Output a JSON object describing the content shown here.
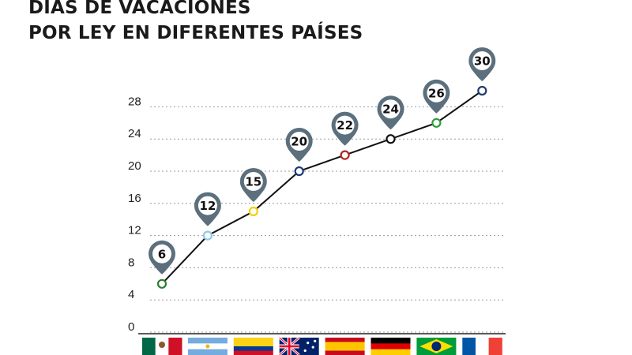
{
  "title": {
    "line1": "DIAS DE VACACIONES",
    "line2": "POR LEY EN DIFERENTES PAÍSES"
  },
  "chart_data": {
    "type": "line",
    "title": "DIAS DE VACACIONES POR LEY EN DIFERENTES PAÍSES",
    "xlabel": "",
    "ylabel": "",
    "yticks": [
      0,
      4,
      8,
      12,
      16,
      20,
      24,
      28
    ],
    "ylim": [
      0,
      30
    ],
    "grid": true,
    "categories": [
      "México",
      "Argentina",
      "Colombia",
      "Australia",
      "España",
      "Alemania",
      "Brasil",
      "Francia"
    ],
    "values": [
      6,
      12,
      15,
      20,
      22,
      24,
      26,
      30
    ],
    "data_labels": [
      "6",
      "12",
      "15",
      "20",
      "22",
      "24",
      "26",
      "30"
    ],
    "marker_colors": [
      "#2e7d32",
      "#8ecae6",
      "#f2d00a",
      "#1f3b73",
      "#b3261e",
      "#111111",
      "#2e9a3a",
      "#1f3b73"
    ],
    "line_color": "#111111",
    "pin_color": "#5b6f7d",
    "flags": [
      {
        "name": "mexico-flag",
        "stripes": "v",
        "colors": [
          "#006847",
          "#ffffff",
          "#ce1126"
        ]
      },
      {
        "name": "argentina-flag",
        "stripes": "h",
        "colors": [
          "#74acdf",
          "#ffffff",
          "#74acdf"
        ]
      },
      {
        "name": "colombia-flag",
        "stripes": "h",
        "colors": [
          "#fcd116",
          "#fcd116",
          "#003893",
          "#ce1126"
        ]
      },
      {
        "name": "australia-flag",
        "stripes": "au",
        "colors": [
          "#012169",
          "#ffffff",
          "#e4002b"
        ]
      },
      {
        "name": "spain-flag",
        "stripes": "h",
        "colors": [
          "#c60b1e",
          "#ffc400",
          "#ffc400",
          "#c60b1e"
        ]
      },
      {
        "name": "germany-flag",
        "stripes": "h",
        "colors": [
          "#000000",
          "#dd0000",
          "#ffce00"
        ]
      },
      {
        "name": "brazil-flag",
        "stripes": "br",
        "colors": [
          "#009c3b",
          "#ffdf00",
          "#002776"
        ]
      },
      {
        "name": "france-flag",
        "stripes": "v",
        "colors": [
          "#0055a4",
          "#ffffff",
          "#ef4135"
        ]
      }
    ]
  }
}
